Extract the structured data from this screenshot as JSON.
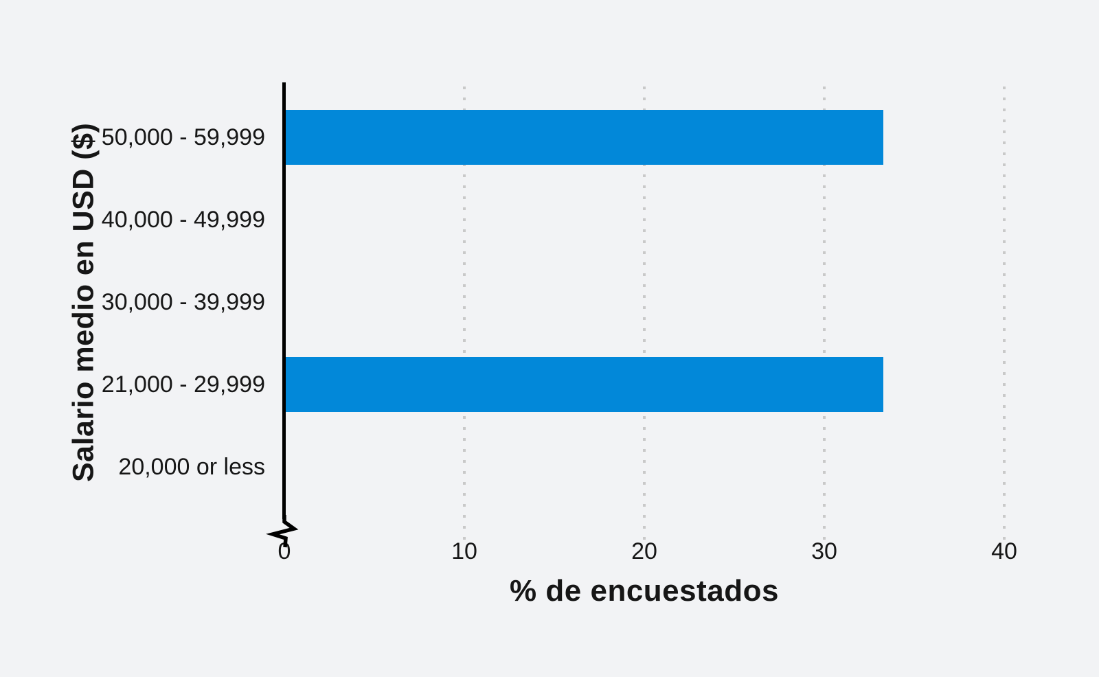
{
  "chart_data": {
    "type": "bar",
    "orientation": "horizontal",
    "title": "",
    "xlabel": "% de encuestados",
    "ylabel": "Salario medio en USD ($)",
    "categories": [
      "50,000 - 59,999",
      "40,000 - 49,999",
      "30,000 - 39,999",
      "21,000 - 29,999",
      "20,000 or less"
    ],
    "values": [
      33.3,
      0,
      0,
      33.3,
      0
    ],
    "xticks": [
      0,
      10,
      20,
      30,
      40
    ],
    "xtick_labels": [
      "0",
      "10",
      "20",
      "30",
      "40"
    ],
    "xlim": [
      0,
      45.3
    ],
    "grid": "vertical-dotted",
    "legend": "none",
    "axis_break_at_origin": true,
    "colors": {
      "bar": "#0288D9",
      "background": "#F2F3F5",
      "text": "#161616",
      "gridline": "#C9C9C9",
      "axis": "#000000"
    }
  }
}
